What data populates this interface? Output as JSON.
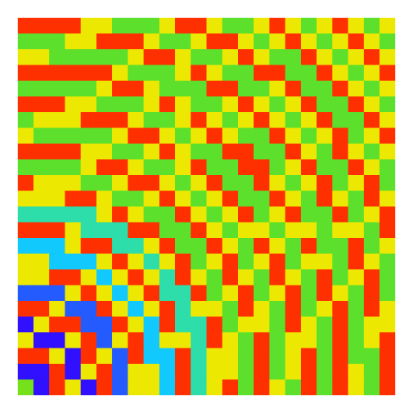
{
  "chart_data": {
    "type": "heatmap",
    "tick_labels": false,
    "cells": [
      [
        1,
        1,
        1,
        1,
        0.72,
        0.72,
        0.45,
        0.45,
        0.45,
        0.72,
        1,
        1,
        0.72,
        0.45,
        0.45,
        0.72,
        1,
        0.72,
        0.45,
        0.72,
        1,
        0.72,
        0.45,
        0.72
      ],
      [
        0.45,
        0.45,
        0.45,
        0.72,
        0.72,
        1,
        1,
        1,
        0.72,
        0.45,
        0.45,
        0.72,
        1,
        1,
        0.72,
        0.45,
        0.72,
        1,
        0.72,
        0.45,
        0.72,
        1,
        0.72,
        0.45
      ],
      [
        0.72,
        0.72,
        0.45,
        0.45,
        0.45,
        0.45,
        0.45,
        0.72,
        1,
        1,
        0.72,
        0.45,
        0.45,
        0.72,
        1,
        0.72,
        0.45,
        0.45,
        1,
        0.72,
        0.45,
        0.72,
        1,
        0.72
      ],
      [
        1,
        1,
        1,
        1,
        1,
        1,
        0.72,
        0.45,
        0.45,
        0.45,
        0.72,
        1,
        0.72,
        0.45,
        0.45,
        1,
        1,
        0.45,
        0.45,
        1,
        0.72,
        0.45,
        0.72,
        1
      ],
      [
        0.45,
        0.45,
        0.45,
        0.45,
        0.45,
        0.72,
        1,
        1,
        0.72,
        0.45,
        0.45,
        0.45,
        1,
        1,
        0.45,
        0.45,
        0.72,
        1,
        0.45,
        0.45,
        1,
        0.72,
        0.45,
        0.72
      ],
      [
        1,
        1,
        1,
        0.72,
        0.72,
        0.45,
        0.45,
        0.45,
        0.72,
        1,
        0.72,
        0.45,
        0.45,
        0.72,
        1,
        0.72,
        0.45,
        0.72,
        1,
        0.45,
        0.45,
        1,
        0.72,
        0.45
      ],
      [
        0.45,
        0.72,
        0.72,
        0.72,
        1,
        1,
        1,
        0.72,
        0.45,
        0.45,
        0.72,
        1,
        0.72,
        0.45,
        0.72,
        1,
        0.72,
        0.45,
        0.72,
        1,
        0.45,
        0.45,
        1,
        0.72
      ],
      [
        0.72,
        0.45,
        0.45,
        0.45,
        0.45,
        0.45,
        0.72,
        1,
        1,
        0.72,
        0.45,
        0.72,
        1,
        0.72,
        0.45,
        0.45,
        1,
        0.72,
        0.45,
        0.72,
        1,
        0.45,
        0.72,
        1
      ],
      [
        1,
        1,
        1,
        1,
        0.72,
        0.72,
        0.45,
        0.45,
        0.72,
        1,
        0.72,
        0.45,
        0.45,
        1,
        1,
        0.45,
        0.45,
        1,
        0.72,
        0.45,
        1,
        0.72,
        0.45,
        0.72
      ],
      [
        0.45,
        0.45,
        0.45,
        0.45,
        0.72,
        1,
        1,
        0.72,
        0.45,
        0.45,
        0.72,
        1,
        0.45,
        0.45,
        1,
        1,
        0.45,
        0.72,
        1,
        0.45,
        0.45,
        1,
        0.72,
        0.45
      ],
      [
        1,
        0.72,
        0.72,
        0.72,
        0.45,
        0.45,
        0.72,
        1,
        1,
        0.72,
        0.45,
        0.72,
        1,
        0.45,
        0.45,
        1,
        0.72,
        0.45,
        0.72,
        1,
        0.45,
        0.72,
        1,
        0.45
      ],
      [
        0.72,
        0.72,
        0.72,
        1,
        1,
        0.72,
        0.45,
        0.45,
        0.72,
        1,
        0.72,
        0.45,
        0.72,
        1,
        0.45,
        0.45,
        1,
        0.72,
        0.45,
        1,
        0.72,
        0.45,
        1,
        0.72
      ],
      [
        0.33,
        0.33,
        0.33,
        0.33,
        0.33,
        0.72,
        1,
        0.72,
        0.45,
        0.45,
        1,
        0.72,
        0.45,
        0.72,
        1,
        0.45,
        0.72,
        1,
        0.45,
        0.45,
        1,
        0.45,
        0.72,
        1
      ],
      [
        1,
        1,
        1,
        0.72,
        0.33,
        0.33,
        0.33,
        1,
        1,
        0.45,
        0.45,
        1,
        0.72,
        0.45,
        0.72,
        0.72,
        0.45,
        0.72,
        0.72,
        0.45,
        0.72,
        0.72,
        0.45,
        1
      ],
      [
        0.22,
        0.22,
        0.22,
        0.72,
        1,
        1,
        0.33,
        0.33,
        0.72,
        1,
        0.45,
        0.45,
        1,
        0.72,
        0.45,
        1,
        0.72,
        0.45,
        1,
        0.45,
        0.45,
        1,
        0.45,
        0.72
      ],
      [
        0.72,
        0.72,
        0.22,
        0.22,
        0.22,
        0.72,
        1,
        0.72,
        0.33,
        0.72,
        1,
        0.45,
        0.72,
        1,
        0.45,
        0.72,
        1,
        0.45,
        0.72,
        0.72,
        0.45,
        1,
        0.72,
        0.45
      ],
      [
        0.72,
        0.72,
        1,
        1,
        0.72,
        0.22,
        0.72,
        1,
        0.72,
        0.33,
        1,
        0.72,
        0.45,
        1,
        0.72,
        0.45,
        1,
        0.72,
        0.45,
        1,
        0.45,
        0.72,
        1,
        0.45
      ],
      [
        0.1,
        0.1,
        0.1,
        0.72,
        1,
        0.72,
        0.22,
        0.72,
        1,
        0.33,
        0.33,
        1,
        0.45,
        0.72,
        1,
        0.45,
        0.72,
        1,
        0.45,
        1,
        0.72,
        0.45,
        1,
        0.45
      ],
      [
        1,
        1,
        0.72,
        0.1,
        0.1,
        1,
        0.72,
        0.22,
        0.72,
        1,
        0.33,
        0.72,
        0.72,
        0.45,
        1,
        0.72,
        0.45,
        1,
        0.45,
        0.72,
        1,
        0.45,
        1,
        0.72
      ],
      [
        0.02,
        0.72,
        1,
        1,
        0.1,
        0.1,
        1,
        0.72,
        0.22,
        1,
        0.33,
        0.33,
        1,
        0.45,
        0.72,
        0.72,
        0.45,
        1,
        0.72,
        0.45,
        1,
        0.45,
        0.72,
        0.72
      ],
      [
        0.72,
        0.02,
        0.02,
        0.72,
        1,
        0.1,
        0.72,
        1,
        0.22,
        0.72,
        0.72,
        0.33,
        1,
        0.72,
        0.45,
        1,
        0.45,
        0.72,
        0.72,
        0.45,
        1,
        0.45,
        0.72,
        1
      ],
      [
        1,
        1,
        0.72,
        0.02,
        1,
        0.72,
        0.1,
        1,
        0.22,
        0.22,
        1,
        0.33,
        0.72,
        0.72,
        0.45,
        1,
        0.45,
        0.72,
        1,
        0.45,
        1,
        0.45,
        0.45,
        1
      ],
      [
        0.02,
        0.02,
        1,
        0.02,
        0.72,
        1,
        0.1,
        0.72,
        0.72,
        0.22,
        1,
        0.33,
        0.72,
        0.72,
        0.45,
        1,
        0.45,
        0.72,
        1,
        0.45,
        1,
        0.72,
        0.45,
        1
      ],
      [
        0.5,
        0.02,
        1,
        0.72,
        0.02,
        1,
        0.1,
        0.72,
        0.72,
        0.22,
        1,
        0.33,
        0.72,
        1,
        0.45,
        1,
        0.72,
        0.45,
        1,
        0.45,
        1,
        0.72,
        0.45,
        1
      ]
    ]
  }
}
